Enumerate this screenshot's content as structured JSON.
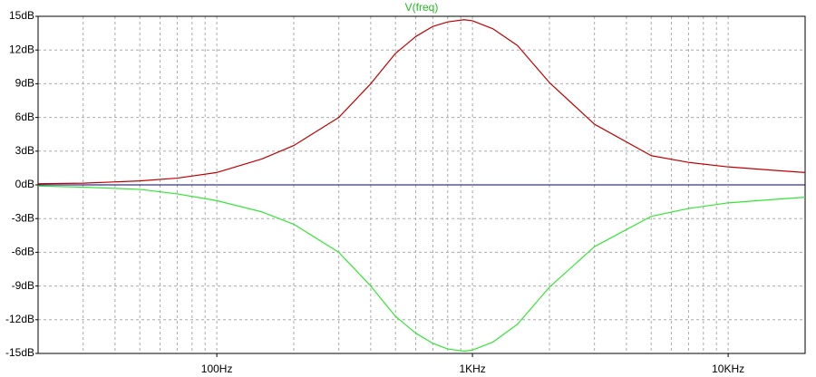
{
  "chart_data": {
    "type": "line",
    "title": "V(freq)",
    "title_color": "#22bb22",
    "xscale": "log",
    "xlim": [
      20,
      20000
    ],
    "xticks": [
      {
        "value": 100,
        "label": "100Hz"
      },
      {
        "value": 1000,
        "label": "1KHz"
      },
      {
        "value": 10000,
        "label": "10KHz"
      }
    ],
    "ylim": [
      -15,
      15
    ],
    "yticks": [
      {
        "value": 15,
        "label": "15dB"
      },
      {
        "value": 12,
        "label": "12dB"
      },
      {
        "value": 9,
        "label": "9dB"
      },
      {
        "value": 6,
        "label": "6dB"
      },
      {
        "value": 3,
        "label": "3dB"
      },
      {
        "value": 0,
        "label": "0dB"
      },
      {
        "value": -3,
        "label": "-3dB"
      },
      {
        "value": -6,
        "label": "-6dB"
      },
      {
        "value": -9,
        "label": "-9dB"
      },
      {
        "value": -12,
        "label": "-12dB"
      },
      {
        "value": -15,
        "label": "-15dB"
      }
    ],
    "grid": true,
    "zero_line_color": "#000080",
    "x": [
      20,
      30,
      50,
      70,
      100,
      150,
      200,
      300,
      400,
      500,
      600,
      700,
      800,
      929,
      1000,
      1200,
      1500,
      2000,
      3000,
      5000,
      7000,
      10000,
      15000,
      20000
    ],
    "series": [
      {
        "color": "#c00000",
        "values": [
          0.1,
          0.15,
          0.35,
          0.6,
          1.1,
          2.3,
          3.5,
          6.0,
          9.0,
          11.7,
          13.2,
          14.1,
          14.5,
          14.7,
          14.6,
          13.9,
          12.4,
          9.1,
          5.4,
          2.6,
          2.0,
          1.6,
          1.3,
          1.1
        ]
      },
      {
        "color": "#33e633",
        "values": [
          -0.1,
          -0.2,
          -0.4,
          -0.8,
          -1.4,
          -2.4,
          -3.5,
          -6.0,
          -9.0,
          -11.7,
          -13.2,
          -14.1,
          -14.6,
          -14.8,
          -14.7,
          -14.0,
          -12.4,
          -9.1,
          -5.5,
          -2.8,
          -2.1,
          -1.6,
          -1.3,
          -1.1
        ]
      }
    ]
  }
}
